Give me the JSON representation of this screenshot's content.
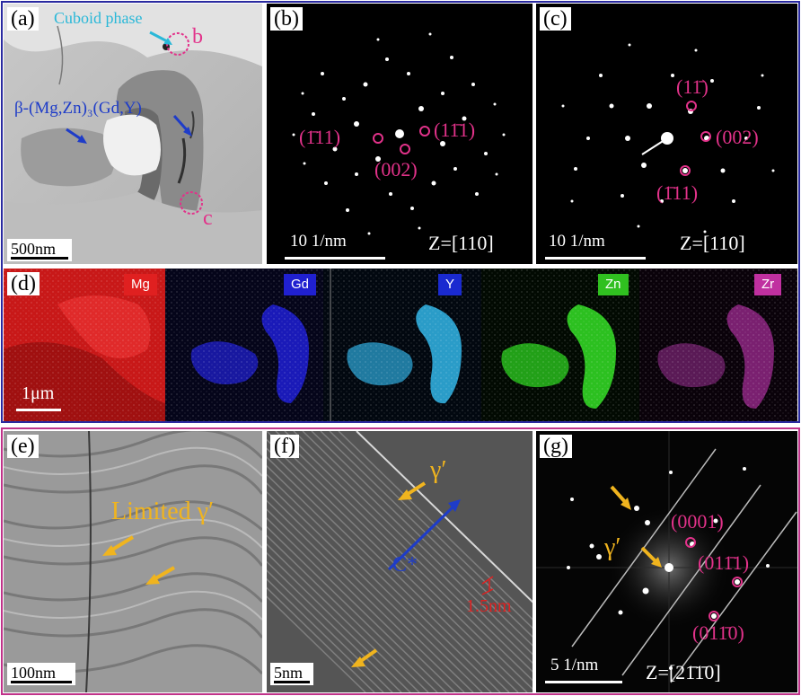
{
  "panels": {
    "a": {
      "label": "(a)",
      "annotation_cuboid": "Cuboid phase",
      "annotation_beta": "β-(Mg,Zn)₃(Gd,Y)",
      "marker_b": "b",
      "marker_c": "c",
      "scale": "500nm"
    },
    "b": {
      "label": "(b)",
      "spot1": "(1̄11)",
      "spot2": "(002)",
      "spot3": "(11̄1)",
      "scale": "10 1/nm",
      "zone": "Z=[110]"
    },
    "c": {
      "label": "(c)",
      "spot1": "(11̄)",
      "spot2": "(002)",
      "spot3": "(1̄11)",
      "scale": "10 1/nm",
      "zone": "Z=[110]"
    },
    "d": {
      "label": "(d)",
      "elements": [
        "Mg",
        "Gd",
        "Y",
        "Zn",
        "Zr"
      ],
      "scale": "1μm"
    },
    "e": {
      "label": "(e)",
      "annotation": "Limited γ′",
      "scale": "100nm"
    },
    "f": {
      "label": "(f)",
      "gamma": "γ′",
      "axis": "C*",
      "spacing": "1.5nm",
      "scale": "5nm"
    },
    "g": {
      "label": "(g)",
      "gamma": "γ′",
      "spot1": "(0001)",
      "spot2": "(011̄1)",
      "spot3": "(011̄0)",
      "scale": "5 1/nm",
      "zone": "Z=[21̄1̄0]"
    }
  },
  "colors": {
    "frame_top": "#2a2aa0",
    "frame_bottom": "#c0338a",
    "magenta": "#e2328a",
    "yellow": "#f0b41e",
    "cyan": "#2ab8d8",
    "blue_arrow": "#1e3cc8",
    "mg": "#e02020",
    "gd": "#2020d0",
    "y": "#30b8e0",
    "zn": "#30c020",
    "zr": "#c030a0"
  }
}
